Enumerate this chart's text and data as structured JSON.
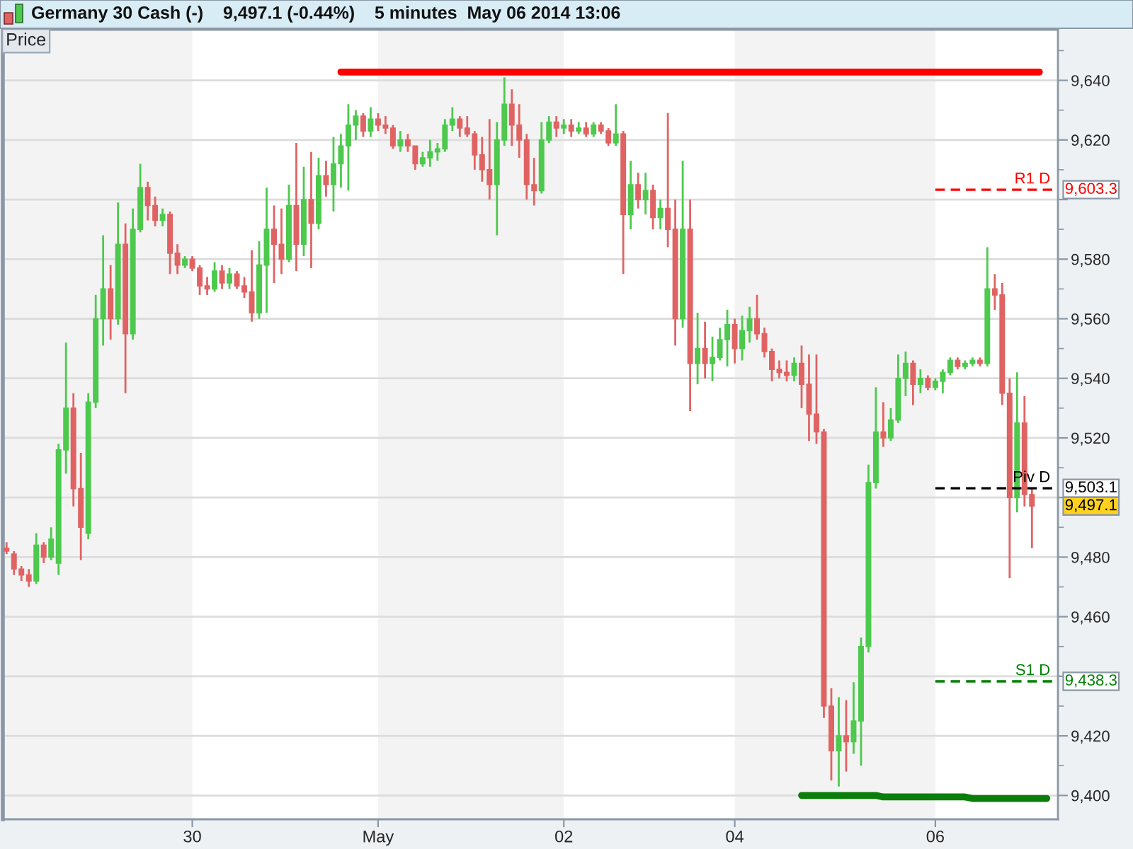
{
  "chart_data": {
    "type": "candlestick",
    "title": "Germany 30 Cash (-)    9,497.1 (-0.44%)    5 minutes  May 06 2014 13:06",
    "ylabel": "Price",
    "categories": [
      null,
      null,
      null,
      null,
      null,
      null,
      null,
      null,
      null,
      null,
      null,
      null,
      null,
      null,
      null,
      null,
      null,
      null,
      null,
      null,
      null,
      null,
      null,
      null,
      null,
      "30",
      null,
      null,
      null,
      null,
      null,
      null,
      null,
      null,
      null,
      null,
      null,
      null,
      null,
      null,
      null,
      null,
      null,
      null,
      null,
      null,
      null,
      null,
      null,
      null,
      "May",
      null,
      null,
      null,
      null,
      null,
      null,
      null,
      null,
      null,
      null,
      null,
      null,
      null,
      null,
      null,
      null,
      null,
      null,
      null,
      null,
      null,
      null,
      null,
      null,
      "02",
      null,
      null,
      null,
      null,
      null,
      null,
      null,
      null,
      null,
      null,
      null,
      null,
      null,
      null,
      null,
      null,
      null,
      null,
      null,
      null,
      null,
      null,
      "04",
      null,
      null,
      null,
      null,
      null,
      null,
      null,
      null,
      null,
      null,
      null,
      null,
      null,
      null,
      null,
      null,
      null,
      null,
      null,
      null,
      null,
      null,
      null,
      null,
      null,
      null,
      "06",
      null,
      null,
      null,
      null,
      null,
      null,
      null,
      null,
      null,
      null,
      null,
      null,
      null,
      null,
      null,
      null
    ],
    "ohlc": [
      [
        9483,
        9485,
        9481,
        9482
      ],
      [
        9481,
        9482,
        9474,
        9476
      ],
      [
        9476,
        9477,
        9472,
        9474
      ],
      [
        9474,
        9476,
        9470,
        9472
      ],
      [
        9472,
        9488,
        9471,
        9484
      ],
      [
        9484,
        9485,
        9478,
        9480
      ],
      [
        9480,
        9490,
        9479,
        9486
      ],
      [
        9478,
        9518,
        9474,
        9516
      ],
      [
        9516,
        9552,
        9508,
        9530
      ],
      [
        9530,
        9535,
        9497,
        9503
      ],
      [
        9503,
        9515,
        9479,
        9490
      ],
      [
        9488,
        9535,
        9486,
        9532
      ],
      [
        9532,
        9568,
        9530,
        9560
      ],
      [
        9560,
        9588,
        9551,
        9570
      ],
      [
        9570,
        9578,
        9553,
        9560
      ],
      [
        9560,
        9599,
        9558,
        9585
      ],
      [
        9585,
        9592,
        9535,
        9555
      ],
      [
        9555,
        9597,
        9553,
        9590
      ],
      [
        9590,
        9612,
        9589,
        9604
      ],
      [
        9604,
        9606,
        9593,
        9598
      ],
      [
        9598,
        9601,
        9591,
        9593
      ],
      [
        9593,
        9597,
        9591,
        9595
      ],
      [
        9595,
        9596,
        9575,
        9582
      ],
      [
        9582,
        9585,
        9575,
        9578
      ],
      [
        9578,
        9581,
        9577,
        9580
      ],
      [
        9580,
        9581,
        9576,
        9577
      ],
      [
        9577,
        9578,
        9568,
        9571
      ],
      [
        9571,
        9574,
        9568,
        9570
      ],
      [
        9570,
        9579,
        9569,
        9576
      ],
      [
        9576,
        9578,
        9570,
        9572
      ],
      [
        9572,
        9577,
        9570,
        9575
      ],
      [
        9575,
        9576,
        9570,
        9571
      ],
      [
        9571,
        9574,
        9567,
        9569
      ],
      [
        9569,
        9583,
        9559,
        9562
      ],
      [
        9562,
        9586,
        9560,
        9578
      ],
      [
        9578,
        9604,
        9562,
        9590
      ],
      [
        9590,
        9598,
        9572,
        9585
      ],
      [
        9585,
        9597,
        9575,
        9580
      ],
      [
        9580,
        9605,
        9579,
        9598
      ],
      [
        9598,
        9619,
        9576,
        9585
      ],
      [
        9585,
        9611,
        9581,
        9600
      ],
      [
        9600,
        9616,
        9577,
        9592
      ],
      [
        9592,
        9614,
        9590,
        9608
      ],
      [
        9608,
        9613,
        9601,
        9605
      ],
      [
        9605,
        9621,
        9596,
        9612
      ],
      [
        9612,
        9622,
        9604,
        9618
      ],
      [
        9618,
        9632,
        9603,
        9625
      ],
      [
        9625,
        9630,
        9620,
        9628
      ],
      [
        9628,
        9629,
        9621,
        9623
      ],
      [
        9623,
        9631,
        9621,
        9627
      ],
      [
        9627,
        9629,
        9623,
        9625
      ],
      [
        9625,
        9628,
        9622,
        9624
      ],
      [
        9624,
        9625,
        9617,
        9618
      ],
      [
        9618,
        9623,
        9616,
        9620
      ],
      [
        9620,
        9622,
        9616,
        9618
      ],
      [
        9618,
        9618,
        9610,
        9612
      ],
      [
        9612,
        9616,
        9611,
        9614
      ],
      [
        9614,
        9620,
        9611,
        9616
      ],
      [
        9616,
        9619,
        9613,
        9617
      ],
      [
        9617,
        9627,
        9616,
        9625
      ],
      [
        9625,
        9631,
        9623,
        9627
      ],
      [
        9627,
        9628,
        9621,
        9624
      ],
      [
        9624,
        9628,
        9621,
        9622
      ],
      [
        9622,
        9623,
        9610,
        9615
      ],
      [
        9615,
        9621,
        9606,
        9610
      ],
      [
        9610,
        9627,
        9600,
        9605
      ],
      [
        9605,
        9626,
        9588,
        9620
      ],
      [
        9620,
        9641,
        9618,
        9632
      ],
      [
        9632,
        9637,
        9618,
        9625
      ],
      [
        9625,
        9632,
        9614,
        9620
      ],
      [
        9620,
        9622,
        9600,
        9605
      ],
      [
        9605,
        9614,
        9598,
        9603
      ],
      [
        9603,
        9626,
        9602,
        9620
      ],
      [
        9620,
        9628,
        9619,
        9626
      ],
      [
        9626,
        9628,
        9621,
        9624
      ],
      [
        9624,
        9627,
        9622,
        9625
      ],
      [
        9625,
        9627,
        9621,
        9623
      ],
      [
        9623,
        9626,
        9622,
        9624
      ],
      [
        9624,
        9626,
        9621,
        9622
      ],
      [
        9622,
        9626,
        9621,
        9625
      ],
      [
        9625,
        9626,
        9622,
        9623
      ],
      [
        9623,
        9624,
        9618,
        9619
      ],
      [
        9619,
        9632,
        9618,
        9622
      ],
      [
        9622,
        9623,
        9575,
        9595
      ],
      [
        9595,
        9613,
        9590,
        9605
      ],
      [
        9605,
        9609,
        9597,
        9600
      ],
      [
        9600,
        9609,
        9595,
        9603
      ],
      [
        9603,
        9605,
        9590,
        9594
      ],
      [
        9594,
        9600,
        9590,
        9597
      ],
      [
        9597,
        9629,
        9584,
        9590
      ],
      [
        9590,
        9600,
        9551,
        9560
      ],
      [
        9560,
        9613,
        9557,
        9590
      ],
      [
        9590,
        9600,
        9529,
        9545
      ],
      [
        9545,
        9562,
        9538,
        9550
      ],
      [
        9550,
        9559,
        9540,
        9545
      ],
      [
        9545,
        9554,
        9539,
        9547
      ],
      [
        9547,
        9557,
        9546,
        9553
      ],
      [
        9553,
        9563,
        9544,
        9558
      ],
      [
        9558,
        9560,
        9545,
        9550
      ],
      [
        9550,
        9561,
        9546,
        9556
      ],
      [
        9556,
        9564,
        9552,
        9560
      ],
      [
        9560,
        9568,
        9553,
        9555
      ],
      [
        9555,
        9557,
        9547,
        9549
      ],
      [
        9549,
        9550,
        9539,
        9543
      ],
      [
        9543,
        9546,
        9540,
        9542
      ],
      [
        9542,
        9546,
        9539,
        9541
      ],
      [
        9541,
        9547,
        9539,
        9545
      ],
      [
        9545,
        9551,
        9530,
        9538
      ],
      [
        9538,
        9548,
        9519,
        9528
      ],
      [
        9528,
        9548,
        9518,
        9522
      ],
      [
        9522,
        9523,
        9426,
        9430
      ],
      [
        9430,
        9436,
        9405,
        9415
      ],
      [
        9415,
        9433,
        9403,
        9420
      ],
      [
        9420,
        9432,
        9408,
        9418
      ],
      [
        9418,
        9438,
        9414,
        9425
      ],
      [
        9425,
        9453,
        9410,
        9450
      ],
      [
        9450,
        9511,
        9448,
        9505
      ],
      [
        9505,
        9537,
        9503,
        9522
      ],
      [
        9522,
        9532,
        9517,
        9520
      ],
      [
        9520,
        9530,
        9519,
        9526
      ],
      [
        9526,
        9548,
        9525,
        9540
      ],
      [
        9540,
        9549,
        9534,
        9545
      ],
      [
        9545,
        9546,
        9531,
        9538
      ],
      [
        9538,
        9543,
        9535,
        9540
      ],
      [
        9540,
        9541,
        9536,
        9537
      ],
      [
        9537,
        9540,
        9536,
        9539
      ],
      [
        9539,
        9543,
        9535,
        9542
      ],
      [
        9542,
        9547,
        9541,
        9546
      ],
      [
        9546,
        9547,
        9543,
        9544
      ],
      [
        9544,
        9546,
        9543,
        9545
      ],
      [
        9545,
        9547,
        9544,
        9546
      ],
      [
        9546,
        9547,
        9544,
        9545
      ],
      [
        9545,
        9584,
        9544,
        9570
      ],
      [
        9570,
        9575,
        9563,
        9568
      ],
      [
        9568,
        9572,
        9531,
        9535
      ],
      [
        9535,
        9540,
        9473,
        9500
      ],
      [
        9500,
        9542,
        9495,
        9525
      ],
      [
        9525,
        9534,
        9497,
        9501
      ],
      [
        9501,
        9503,
        9483,
        9497.1
      ],
      null,
      null,
      null
    ],
    "colors": [
      "#e06363",
      "#e06363",
      "#e06363",
      "#e06363",
      "#4dc94d",
      "#e06363",
      "#4dc94d",
      "#4dc94d",
      "#4dc94d",
      "#e06363",
      "#e06363",
      "#4dc94d",
      "#4dc94d",
      "#4dc94d",
      "#e06363",
      "#4dc94d",
      "#e06363",
      "#4dc94d",
      "#4dc94d",
      "#e06363",
      "#e06363",
      "#4dc94d",
      "#e06363",
      "#e06363",
      "#4dc94d",
      "#e06363",
      "#e06363",
      "#e06363",
      "#4dc94d",
      "#e06363",
      "#4dc94d",
      "#e06363",
      "#e06363",
      "#e06363",
      "#4dc94d",
      "#4dc94d",
      "#e06363",
      "#e06363",
      "#4dc94d",
      "#e06363",
      "#4dc94d",
      "#e06363",
      "#4dc94d",
      "#e06363",
      "#4dc94d",
      "#4dc94d",
      "#4dc94d",
      "#4dc94d",
      "#e06363",
      "#4dc94d",
      "#e06363",
      "#e06363",
      "#e06363",
      "#4dc94d",
      "#e06363",
      "#e06363",
      "#4dc94d",
      "#4dc94d",
      "#4dc94d",
      "#4dc94d",
      "#4dc94d",
      "#e06363",
      "#e06363",
      "#e06363",
      "#e06363",
      "#e06363",
      "#4dc94d",
      "#4dc94d",
      "#e06363",
      "#e06363",
      "#e06363",
      "#e06363",
      "#4dc94d",
      "#4dc94d",
      "#e06363",
      "#4dc94d",
      "#e06363",
      "#4dc94d",
      "#e06363",
      "#4dc94d",
      "#e06363",
      "#e06363",
      "#4dc94d",
      "#e06363",
      "#4dc94d",
      "#e06363",
      "#4dc94d",
      "#e06363",
      "#4dc94d",
      "#e06363",
      "#e06363",
      "#4dc94d",
      "#e06363",
      "#4dc94d",
      "#e06363",
      "#4dc94d",
      "#4dc94d",
      "#4dc94d",
      "#e06363",
      "#4dc94d",
      "#4dc94d",
      "#e06363",
      "#e06363",
      "#e06363",
      "#e06363",
      "#e06363",
      "#4dc94d",
      "#e06363",
      "#e06363",
      "#e06363",
      "#e06363",
      "#e06363",
      "#4dc94d",
      "#e06363",
      "#4dc94d",
      "#4dc94d",
      "#4dc94d",
      "#4dc94d",
      "#e06363",
      "#4dc94d",
      "#4dc94d",
      "#4dc94d",
      "#e06363",
      "#4dc94d",
      "#e06363",
      "#4dc94d",
      "#4dc94d",
      "#4dc94d",
      "#e06363",
      "#4dc94d",
      "#4dc94d",
      "#e06363",
      "#4dc94d",
      "#e06363",
      "#e06363",
      "#e06363",
      "#4dc94d",
      "#e06363",
      "#e06363",
      null,
      null,
      null
    ],
    "value_labels": [
      null,
      null,
      null,
      null,
      null,
      null,
      null,
      null,
      null,
      null,
      null,
      null,
      null,
      null,
      null,
      null,
      null,
      null,
      null,
      null,
      null,
      null,
      null,
      null,
      null,
      null,
      null,
      null,
      null,
      null,
      null,
      null,
      null,
      null,
      null,
      null,
      null,
      null,
      null,
      null,
      null,
      null,
      null,
      null,
      null,
      null,
      null,
      null,
      null,
      null,
      null,
      null,
      null,
      null,
      null,
      null,
      null,
      null,
      null,
      null,
      null,
      null,
      null,
      null,
      null,
      null,
      null,
      null,
      null,
      null,
      null,
      null,
      null,
      null,
      null,
      null,
      null,
      null,
      null,
      null,
      null,
      null,
      null,
      null,
      null,
      null,
      null,
      null,
      null,
      null,
      null,
      null,
      null,
      null,
      null,
      null,
      null,
      null,
      null,
      null,
      null,
      null,
      null,
      null,
      null,
      null,
      null,
      null,
      null,
      null,
      null,
      null,
      null,
      null,
      null,
      null,
      null,
      null,
      null,
      null,
      null,
      null,
      null,
      null,
      null,
      null,
      null,
      null,
      null,
      null,
      null,
      null,
      null,
      null,
      null,
      null,
      null,
      null,
      "9,497.1",
      null,
      null,
      null
    ],
    "series": [
      {
        "type": "line",
        "color": "#ff0000",
        "values": [
          null,
          null,
          null,
          null,
          null,
          null,
          null,
          null,
          null,
          null,
          null,
          null,
          null,
          null,
          null,
          null,
          null,
          null,
          null,
          null,
          null,
          null,
          null,
          null,
          null,
          null,
          null,
          null,
          null,
          null,
          null,
          null,
          null,
          null,
          null,
          null,
          null,
          null,
          null,
          null,
          null,
          null,
          null,
          null,
          null,
          9642.8,
          9642.8,
          9642.8,
          9642.8,
          9642.8,
          9642.8,
          9642.8,
          9642.8,
          9642.8,
          9642.8,
          9642.8,
          9642.8,
          9642.8,
          9642.8,
          9642.8,
          9642.8,
          9642.8,
          9642.8,
          9642.8,
          9642.8,
          9642.8,
          9642.8,
          9642.8,
          9642.8,
          9642.8,
          9642.8,
          9642.8,
          9642.8,
          9642.8,
          9642.8,
          9642.8,
          9642.8,
          9642.8,
          9642.8,
          9642.8,
          9642.8,
          9642.8,
          9642.8,
          9642.8,
          9642.8,
          9642.8,
          9642.8,
          9642.8,
          9642.8,
          9642.8,
          9642.8,
          9642.8,
          9642.8,
          9642.8,
          9642.8,
          9642.8,
          9642.8,
          9642.8,
          9642.8,
          9642.8,
          9642.8,
          9642.8,
          9642.8,
          9642.8,
          9642.8,
          9642.8,
          9642.8,
          9642.8,
          9642.8,
          9642.8,
          9642.8,
          9642.8,
          9642.8,
          9642.8,
          9642.8,
          9642.8,
          9642.8,
          9642.8,
          9642.8,
          9642.8,
          9642.8,
          9642.8,
          9642.8,
          9642.8,
          9642.8,
          9642.8,
          9642.8,
          9642.8,
          9642.8,
          9642.8,
          9642.8,
          9642.8,
          9642.8,
          9642.8,
          9642.8,
          9642.8,
          9642.8,
          9642.8,
          9642.8,
          9642.8,
          null,
          null
        ]
      },
      {
        "type": "line",
        "color": "#0a7d0a",
        "values": [
          null,
          null,
          null,
          null,
          null,
          null,
          null,
          null,
          null,
          null,
          null,
          null,
          null,
          null,
          null,
          null,
          null,
          null,
          null,
          null,
          null,
          null,
          null,
          null,
          null,
          null,
          null,
          null,
          null,
          null,
          null,
          null,
          null,
          null,
          null,
          null,
          null,
          null,
          null,
          null,
          null,
          null,
          null,
          null,
          null,
          null,
          null,
          null,
          null,
          null,
          null,
          null,
          null,
          null,
          null,
          null,
          null,
          null,
          null,
          null,
          null,
          null,
          null,
          null,
          null,
          null,
          null,
          null,
          null,
          null,
          null,
          null,
          null,
          null,
          null,
          null,
          null,
          null,
          null,
          null,
          null,
          null,
          null,
          null,
          null,
          null,
          null,
          null,
          null,
          null,
          null,
          null,
          null,
          null,
          null,
          null,
          null,
          null,
          null,
          null,
          null,
          null,
          null,
          null,
          null,
          null,
          null,
          9400,
          9400,
          9400,
          9400,
          9400,
          9400,
          9400,
          9400,
          9400,
          9400,
          9400,
          9399.5,
          9399.5,
          9399.5,
          9399.5,
          9399.5,
          9399.5,
          9399.5,
          9399.5,
          9399.5,
          9399.5,
          9399.5,
          9399.5,
          9399,
          9399,
          9399,
          9399,
          9399,
          9399,
          9399,
          9399,
          9399,
          9399,
          9399,
          null
        ]
      },
      {
        "type": "line",
        "name": "R1 D",
        "color": "#ff0000",
        "line_style": "dashed",
        "values": [
          null,
          null,
          null,
          null,
          null,
          null,
          null,
          null,
          null,
          null,
          null,
          null,
          null,
          null,
          null,
          null,
          null,
          null,
          null,
          null,
          null,
          null,
          null,
          null,
          null,
          null,
          null,
          null,
          null,
          null,
          null,
          null,
          null,
          null,
          null,
          null,
          null,
          null,
          null,
          null,
          null,
          null,
          null,
          null,
          null,
          null,
          null,
          null,
          null,
          null,
          null,
          null,
          null,
          null,
          null,
          null,
          null,
          null,
          null,
          null,
          null,
          null,
          null,
          null,
          null,
          null,
          null,
          null,
          null,
          null,
          null,
          null,
          null,
          null,
          null,
          null,
          null,
          null,
          null,
          null,
          null,
          null,
          null,
          null,
          null,
          null,
          null,
          null,
          null,
          null,
          null,
          null,
          null,
          null,
          null,
          null,
          null,
          null,
          null,
          null,
          null,
          null,
          null,
          null,
          null,
          null,
          null,
          null,
          null,
          null,
          null,
          null,
          null,
          null,
          null,
          null,
          null,
          null,
          null,
          null,
          null,
          null,
          null,
          null,
          null,
          9603.3,
          9603.3,
          9603.3,
          9603.3,
          9603.3,
          9603.3,
          9603.3,
          9603.3,
          9603.3,
          9603.3,
          9603.3,
          9603.3,
          9603.3,
          9603.3,
          9603.3,
          9603.3,
          9603.3
        ],
        "value_labels": [
          null,
          null,
          null,
          null,
          null,
          null,
          null,
          null,
          null,
          null,
          null,
          null,
          null,
          null,
          null,
          null,
          null,
          null,
          null,
          null,
          null,
          null,
          null,
          null,
          null,
          null,
          null,
          null,
          null,
          null,
          null,
          null,
          null,
          null,
          null,
          null,
          null,
          null,
          null,
          null,
          null,
          null,
          null,
          null,
          null,
          null,
          null,
          null,
          null,
          null,
          null,
          null,
          null,
          null,
          null,
          null,
          null,
          null,
          null,
          null,
          null,
          null,
          null,
          null,
          null,
          null,
          null,
          null,
          null,
          null,
          null,
          null,
          null,
          null,
          null,
          null,
          null,
          null,
          null,
          null,
          null,
          null,
          null,
          null,
          null,
          null,
          null,
          null,
          null,
          null,
          null,
          null,
          null,
          null,
          null,
          null,
          null,
          null,
          null,
          null,
          null,
          null,
          null,
          null,
          null,
          null,
          null,
          null,
          null,
          null,
          null,
          null,
          null,
          null,
          null,
          null,
          null,
          null,
          null,
          null,
          null,
          null,
          null,
          null,
          null,
          null,
          null,
          null,
          null,
          null,
          null,
          null,
          null,
          null,
          null,
          null,
          null,
          null,
          null,
          null,
          null,
          "9,603.3"
        ]
      },
      {
        "type": "line",
        "name": "Piv D",
        "color": "#000000",
        "line_style": "dashed",
        "values": [
          null,
          null,
          null,
          null,
          null,
          null,
          null,
          null,
          null,
          null,
          null,
          null,
          null,
          null,
          null,
          null,
          null,
          null,
          null,
          null,
          null,
          null,
          null,
          null,
          null,
          null,
          null,
          null,
          null,
          null,
          null,
          null,
          null,
          null,
          null,
          null,
          null,
          null,
          null,
          null,
          null,
          null,
          null,
          null,
          null,
          null,
          null,
          null,
          null,
          null,
          null,
          null,
          null,
          null,
          null,
          null,
          null,
          null,
          null,
          null,
          null,
          null,
          null,
          null,
          null,
          null,
          null,
          null,
          null,
          null,
          null,
          null,
          null,
          null,
          null,
          null,
          null,
          null,
          null,
          null,
          null,
          null,
          null,
          null,
          null,
          null,
          null,
          null,
          null,
          null,
          null,
          null,
          null,
          null,
          null,
          null,
          null,
          null,
          null,
          null,
          null,
          null,
          null,
          null,
          null,
          null,
          null,
          null,
          null,
          null,
          null,
          null,
          null,
          null,
          null,
          null,
          null,
          null,
          null,
          null,
          null,
          null,
          null,
          null,
          null,
          9503.1,
          9503.1,
          9503.1,
          9503.1,
          9503.1,
          9503.1,
          9503.1,
          9503.1,
          9503.1,
          9503.1,
          9503.1,
          9503.1,
          9503.1,
          9503.1,
          9503.1,
          9503.1,
          9503.1
        ],
        "value_labels": [
          null,
          null,
          null,
          null,
          null,
          null,
          null,
          null,
          null,
          null,
          null,
          null,
          null,
          null,
          null,
          null,
          null,
          null,
          null,
          null,
          null,
          null,
          null,
          null,
          null,
          null,
          null,
          null,
          null,
          null,
          null,
          null,
          null,
          null,
          null,
          null,
          null,
          null,
          null,
          null,
          null,
          null,
          null,
          null,
          null,
          null,
          null,
          null,
          null,
          null,
          null,
          null,
          null,
          null,
          null,
          null,
          null,
          null,
          null,
          null,
          null,
          null,
          null,
          null,
          null,
          null,
          null,
          null,
          null,
          null,
          null,
          null,
          null,
          null,
          null,
          null,
          null,
          null,
          null,
          null,
          null,
          null,
          null,
          null,
          null,
          null,
          null,
          null,
          null,
          null,
          null,
          null,
          null,
          null,
          null,
          null,
          null,
          null,
          null,
          null,
          null,
          null,
          null,
          null,
          null,
          null,
          null,
          null,
          null,
          null,
          null,
          null,
          null,
          null,
          null,
          null,
          null,
          null,
          null,
          null,
          null,
          null,
          null,
          null,
          null,
          null,
          null,
          null,
          null,
          null,
          null,
          null,
          null,
          null,
          null,
          null,
          null,
          null,
          null,
          null,
          null,
          "9,503.1"
        ]
      },
      {
        "type": "line",
        "name": "S1 D",
        "color": "#008000",
        "line_style": "dashed",
        "values": [
          null,
          null,
          null,
          null,
          null,
          null,
          null,
          null,
          null,
          null,
          null,
          null,
          null,
          null,
          null,
          null,
          null,
          null,
          null,
          null,
          null,
          null,
          null,
          null,
          null,
          null,
          null,
          null,
          null,
          null,
          null,
          null,
          null,
          null,
          null,
          null,
          null,
          null,
          null,
          null,
          null,
          null,
          null,
          null,
          null,
          null,
          null,
          null,
          null,
          null,
          null,
          null,
          null,
          null,
          null,
          null,
          null,
          null,
          null,
          null,
          null,
          null,
          null,
          null,
          null,
          null,
          null,
          null,
          null,
          null,
          null,
          null,
          null,
          null,
          null,
          null,
          null,
          null,
          null,
          null,
          null,
          null,
          null,
          null,
          null,
          null,
          null,
          null,
          null,
          null,
          null,
          null,
          null,
          null,
          null,
          null,
          null,
          null,
          null,
          null,
          null,
          null,
          null,
          null,
          null,
          null,
          null,
          null,
          null,
          null,
          null,
          null,
          null,
          null,
          null,
          null,
          null,
          null,
          null,
          null,
          null,
          null,
          null,
          null,
          null,
          9438.3,
          9438.3,
          9438.3,
          9438.3,
          9438.3,
          9438.3,
          9438.3,
          9438.3,
          9438.3,
          9438.3,
          9438.3,
          9438.3,
          9438.3,
          9438.3,
          9438.3,
          9438.3,
          9438.3
        ],
        "value_labels": [
          null,
          null,
          null,
          null,
          null,
          null,
          null,
          null,
          null,
          null,
          null,
          null,
          null,
          null,
          null,
          null,
          null,
          null,
          null,
          null,
          null,
          null,
          null,
          null,
          null,
          null,
          null,
          null,
          null,
          null,
          null,
          null,
          null,
          null,
          null,
          null,
          null,
          null,
          null,
          null,
          null,
          null,
          null,
          null,
          null,
          null,
          null,
          null,
          null,
          null,
          null,
          null,
          null,
          null,
          null,
          null,
          null,
          null,
          null,
          null,
          null,
          null,
          null,
          null,
          null,
          null,
          null,
          null,
          null,
          null,
          null,
          null,
          null,
          null,
          null,
          null,
          null,
          null,
          null,
          null,
          null,
          null,
          null,
          null,
          null,
          null,
          null,
          null,
          null,
          null,
          null,
          null,
          null,
          null,
          null,
          null,
          null,
          null,
          null,
          null,
          null,
          null,
          null,
          null,
          null,
          null,
          null,
          null,
          null,
          null,
          null,
          null,
          null,
          null,
          null,
          null,
          null,
          null,
          null,
          null,
          null,
          null,
          null,
          null,
          null,
          null,
          null,
          null,
          null,
          null,
          null,
          null,
          null,
          null,
          null,
          null,
          null,
          null,
          null,
          null,
          null,
          "9,438.3"
        ]
      }
    ],
    "ylim": [
      9392,
      9657
    ],
    "yticks": [
      {
        "value": 9400,
        "label": "9,400"
      },
      {
        "value": 9410,
        "label": null
      },
      {
        "value": 9420,
        "label": "9,420"
      },
      {
        "value": 9430,
        "label": null
      },
      {
        "value": 9440,
        "label": null
      },
      {
        "value": 9450,
        "label": null
      },
      {
        "value": 9460,
        "label": "9,460"
      },
      {
        "value": 9470,
        "label": null
      },
      {
        "value": 9480,
        "label": "9,480"
      },
      {
        "value": 9490,
        "label": null
      },
      {
        "value": 9500,
        "label": null
      },
      {
        "value": 9510,
        "label": null
      },
      {
        "value": 9520,
        "label": "9,520"
      },
      {
        "value": 9530,
        "label": null
      },
      {
        "value": 9540,
        "label": "9,540"
      },
      {
        "value": 9550,
        "label": null
      },
      {
        "value": 9560,
        "label": "9,560"
      },
      {
        "value": 9570,
        "label": null
      },
      {
        "value": 9580,
        "label": "9,580"
      },
      {
        "value": 9590,
        "label": null
      },
      {
        "value": 9600,
        "label": null
      },
      {
        "value": 9610,
        "label": null
      },
      {
        "value": 9620,
        "label": "9,620"
      },
      {
        "value": 9630,
        "label": null
      },
      {
        "value": 9640,
        "label": "9,640"
      },
      {
        "value": 9650,
        "label": null
      }
    ],
    "grid": "y",
    "bands": [
      {
        "axis": "x",
        "from": "May",
        "to": "02",
        "color": "#f3f3f3"
      },
      {
        "axis": "x",
        "from": "04",
        "to": "06",
        "color": "#f3f3f3"
      }
    ]
  }
}
